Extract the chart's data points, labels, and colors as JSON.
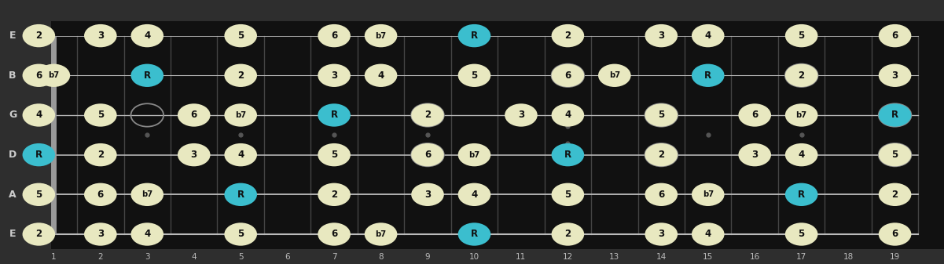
{
  "bg_color": "#2e2e2e",
  "fretboard_color": "#111111",
  "string_color": "#bbbbbb",
  "fret_color": "#444444",
  "note_fill": "#e8e8c0",
  "root_fill": "#3bbece",
  "label_color": "#111111",
  "fret_label_color": "#bbbbbb",
  "string_label_color": "#cccccc",
  "string_names": [
    "E",
    "B",
    "G",
    "D",
    "A",
    "E"
  ],
  "fret_max": 19,
  "notes": [
    {
      "string": 1,
      "fret": 0,
      "label": "2",
      "root": false
    },
    {
      "string": 1,
      "fret": 2,
      "label": "3",
      "root": false
    },
    {
      "string": 1,
      "fret": 3,
      "label": "4",
      "root": false
    },
    {
      "string": 1,
      "fret": 5,
      "label": "5",
      "root": false
    },
    {
      "string": 1,
      "fret": 7,
      "label": "6",
      "root": false
    },
    {
      "string": 1,
      "fret": 8,
      "label": "b7",
      "root": false
    },
    {
      "string": 1,
      "fret": 10,
      "label": "R",
      "root": true
    },
    {
      "string": 1,
      "fret": 12,
      "label": "2",
      "root": false
    },
    {
      "string": 1,
      "fret": 14,
      "label": "3",
      "root": false
    },
    {
      "string": 1,
      "fret": 15,
      "label": "4",
      "root": false
    },
    {
      "string": 1,
      "fret": 17,
      "label": "5",
      "root": false
    },
    {
      "string": 1,
      "fret": 19,
      "label": "6",
      "root": false
    },
    {
      "string": 2,
      "fret": 0,
      "label": "6",
      "root": false
    },
    {
      "string": 2,
      "fret": 1,
      "label": "b7",
      "root": false
    },
    {
      "string": 2,
      "fret": 3,
      "label": "R",
      "root": true
    },
    {
      "string": 2,
      "fret": 5,
      "label": "2",
      "root": false
    },
    {
      "string": 2,
      "fret": 7,
      "label": "3",
      "root": false
    },
    {
      "string": 2,
      "fret": 8,
      "label": "4",
      "root": false
    },
    {
      "string": 2,
      "fret": 10,
      "label": "5",
      "root": false
    },
    {
      "string": 2,
      "fret": 12,
      "label": "6",
      "root": false
    },
    {
      "string": 2,
      "fret": 13,
      "label": "b7",
      "root": false
    },
    {
      "string": 2,
      "fret": 15,
      "label": "R",
      "root": true
    },
    {
      "string": 2,
      "fret": 17,
      "label": "2",
      "root": false
    },
    {
      "string": 2,
      "fret": 19,
      "label": "3",
      "root": false
    },
    {
      "string": 3,
      "fret": 0,
      "label": "4",
      "root": false
    },
    {
      "string": 3,
      "fret": 2,
      "label": "5",
      "root": false
    },
    {
      "string": 3,
      "fret": 4,
      "label": "6",
      "root": false
    },
    {
      "string": 3,
      "fret": 5,
      "label": "b7",
      "root": false
    },
    {
      "string": 3,
      "fret": 7,
      "label": "R",
      "root": true
    },
    {
      "string": 3,
      "fret": 9,
      "label": "2",
      "root": false
    },
    {
      "string": 3,
      "fret": 11,
      "label": "3",
      "root": false
    },
    {
      "string": 3,
      "fret": 12,
      "label": "4",
      "root": false
    },
    {
      "string": 3,
      "fret": 14,
      "label": "5",
      "root": false
    },
    {
      "string": 3,
      "fret": 16,
      "label": "6",
      "root": false
    },
    {
      "string": 3,
      "fret": 17,
      "label": "b7",
      "root": false
    },
    {
      "string": 3,
      "fret": 19,
      "label": "R",
      "root": true
    },
    {
      "string": 4,
      "fret": 0,
      "label": "R",
      "root": true
    },
    {
      "string": 4,
      "fret": 2,
      "label": "2",
      "root": false
    },
    {
      "string": 4,
      "fret": 4,
      "label": "3",
      "root": false
    },
    {
      "string": 4,
      "fret": 5,
      "label": "4",
      "root": false
    },
    {
      "string": 4,
      "fret": 7,
      "label": "5",
      "root": false
    },
    {
      "string": 4,
      "fret": 9,
      "label": "6",
      "root": false
    },
    {
      "string": 4,
      "fret": 10,
      "label": "b7",
      "root": false
    },
    {
      "string": 4,
      "fret": 12,
      "label": "R",
      "root": true
    },
    {
      "string": 4,
      "fret": 14,
      "label": "2",
      "root": false
    },
    {
      "string": 4,
      "fret": 16,
      "label": "3",
      "root": false
    },
    {
      "string": 4,
      "fret": 17,
      "label": "4",
      "root": false
    },
    {
      "string": 4,
      "fret": 19,
      "label": "5",
      "root": false
    },
    {
      "string": 5,
      "fret": 0,
      "label": "5",
      "root": false
    },
    {
      "string": 5,
      "fret": 2,
      "label": "6",
      "root": false
    },
    {
      "string": 5,
      "fret": 3,
      "label": "b7",
      "root": false
    },
    {
      "string": 5,
      "fret": 5,
      "label": "R",
      "root": true
    },
    {
      "string": 5,
      "fret": 7,
      "label": "2",
      "root": false
    },
    {
      "string": 5,
      "fret": 9,
      "label": "3",
      "root": false
    },
    {
      "string": 5,
      "fret": 10,
      "label": "4",
      "root": false
    },
    {
      "string": 5,
      "fret": 12,
      "label": "5",
      "root": false
    },
    {
      "string": 5,
      "fret": 14,
      "label": "6",
      "root": false
    },
    {
      "string": 5,
      "fret": 15,
      "label": "b7",
      "root": false
    },
    {
      "string": 5,
      "fret": 17,
      "label": "R",
      "root": true
    },
    {
      "string": 5,
      "fret": 19,
      "label": "2",
      "root": false
    },
    {
      "string": 6,
      "fret": 0,
      "label": "2",
      "root": false
    },
    {
      "string": 6,
      "fret": 2,
      "label": "3",
      "root": false
    },
    {
      "string": 6,
      "fret": 3,
      "label": "4",
      "root": false
    },
    {
      "string": 6,
      "fret": 5,
      "label": "5",
      "root": false
    },
    {
      "string": 6,
      "fret": 7,
      "label": "6",
      "root": false
    },
    {
      "string": 6,
      "fret": 8,
      "label": "b7",
      "root": false
    },
    {
      "string": 6,
      "fret": 10,
      "label": "R",
      "root": true
    },
    {
      "string": 6,
      "fret": 12,
      "label": "2",
      "root": false
    },
    {
      "string": 6,
      "fret": 14,
      "label": "3",
      "root": false
    },
    {
      "string": 6,
      "fret": 15,
      "label": "4",
      "root": false
    },
    {
      "string": 6,
      "fret": 17,
      "label": "5",
      "root": false
    },
    {
      "string": 6,
      "fret": 19,
      "label": "6",
      "root": false
    }
  ],
  "open_circles": [
    {
      "string": 3,
      "fret": 3
    },
    {
      "string": 3,
      "fret": 9
    },
    {
      "string": 4,
      "fret": 9
    },
    {
      "string": 3,
      "fret": 14
    },
    {
      "string": 4,
      "fret": 14
    },
    {
      "string": 2,
      "fret": 12
    },
    {
      "string": 2,
      "fret": 17
    },
    {
      "string": 3,
      "fret": 19
    },
    {
      "string": 4,
      "fret": 19
    }
  ]
}
